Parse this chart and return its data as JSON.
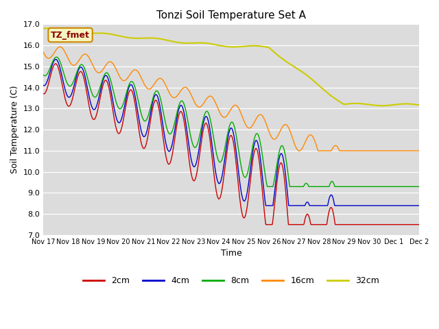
{
  "title": "Tonzi Soil Temperature Set A",
  "xlabel": "Time",
  "ylabel": "Soil Temperature (C)",
  "annotation": "TZ_fmet",
  "ylim": [
    7.0,
    17.0
  ],
  "yticks": [
    7.0,
    8.0,
    9.0,
    10.0,
    11.0,
    12.0,
    13.0,
    14.0,
    15.0,
    16.0,
    17.0
  ],
  "background_color": "#dcdcdc",
  "line_colors": {
    "2cm": "#cc0000",
    "4cm": "#0000cc",
    "8cm": "#00aa00",
    "16cm": "#ff8800",
    "32cm": "#cccc00"
  },
  "xtick_labels": [
    "Nov 17",
    "Nov 18",
    "Nov 19",
    "Nov 20",
    "Nov 21",
    "Nov 22",
    "Nov 23",
    "Nov 24",
    "Nov 25",
    "Nov 26",
    "Nov 27",
    "Nov 28",
    "Nov 29",
    "Nov 30",
    "Dec 1",
    "Dec 2"
  ],
  "legend_entries": [
    "2cm",
    "4cm",
    "8cm",
    "16cm",
    "32cm"
  ]
}
